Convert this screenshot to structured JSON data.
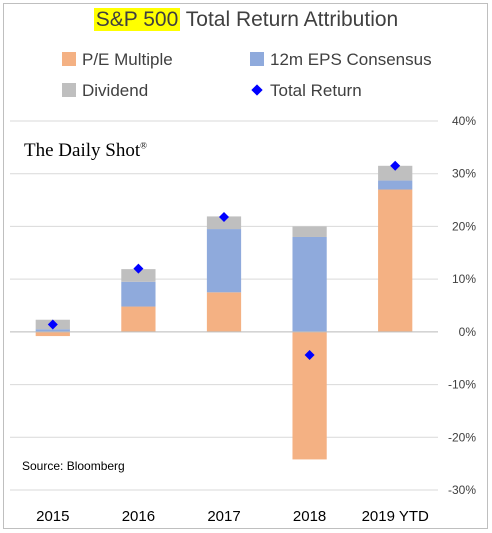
{
  "header": {
    "title_highlight": "S&P 500",
    "title_rest": "Total Return Attribution"
  },
  "watermark": {
    "brand": "The Daily Shot",
    "mark": "®"
  },
  "source": "Source: Bloomberg",
  "chart_data": {
    "type": "bar",
    "stacked": true,
    "categories": [
      "2015",
      "2016",
      "2017",
      "2018",
      "2019 YTD"
    ],
    "series": [
      {
        "name": "P/E Multiple",
        "color": "#f4b183",
        "values": [
          -0.8,
          4.8,
          7.5,
          -24.2,
          27.0
        ]
      },
      {
        "name": "12m EPS Consensus",
        "color": "#8faadc",
        "values": [
          0.5,
          4.7,
          12.0,
          18.0,
          1.7
        ]
      },
      {
        "name": "Dividend",
        "color": "#bfbfbf",
        "values": [
          1.8,
          2.4,
          2.4,
          2.0,
          2.8
        ]
      }
    ],
    "total_return": {
      "name": "Total Return",
      "color": "#0000ff",
      "values": [
        1.4,
        12.0,
        21.8,
        -4.4,
        31.5
      ]
    },
    "yticks": [
      "-30%",
      "-20%",
      "-10%",
      "0%",
      "10%",
      "20%",
      "30%",
      "40%"
    ],
    "ylim": [
      -30,
      40
    ],
    "grid": true,
    "legend_position": "top"
  }
}
